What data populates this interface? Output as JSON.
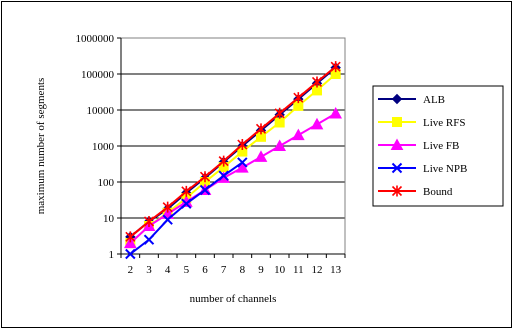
{
  "chart_data": {
    "type": "line",
    "xlabel": "number of channels",
    "ylabel": "maximum number of segments",
    "x": [
      2,
      3,
      4,
      5,
      6,
      7,
      8,
      9,
      10,
      11,
      12,
      13
    ],
    "ylim": [
      1,
      1000000
    ],
    "yscale": "log",
    "ytick_labels": [
      "1",
      "10",
      "100",
      "1000",
      "10000",
      "100000",
      "1000000"
    ],
    "grid": "horizontal major gridlines",
    "legend_position": "right",
    "series": [
      {
        "name": "ALB",
        "color": "#000080",
        "marker": "diamond",
        "values": [
          3,
          8,
          18,
          50,
          130,
          360,
          1000,
          2700,
          7400,
          20000,
          55000,
          150000
        ]
      },
      {
        "name": "Live RFS",
        "color": "#ffff00",
        "marker": "square",
        "values": [
          2,
          6,
          14,
          36,
          100,
          260,
          700,
          1800,
          4500,
          13000,
          35000,
          100000
        ]
      },
      {
        "name": "Live FB",
        "color": "#ff00ff",
        "marker": "triangle",
        "values": [
          2,
          6,
          13,
          28,
          60,
          130,
          250,
          500,
          1000,
          2000,
          4000,
          8000
        ]
      },
      {
        "name": "Live NPB",
        "color": "#0000ff",
        "marker": "x",
        "values": [
          1,
          2.5,
          9,
          25,
          60,
          150,
          350,
          null,
          null,
          null,
          null,
          null
        ]
      },
      {
        "name": "Bound",
        "color": "#ff0000",
        "marker": "star",
        "values": [
          3,
          8,
          20,
          55,
          140,
          380,
          1100,
          3000,
          8100,
          22000,
          60000,
          160000
        ]
      }
    ]
  }
}
